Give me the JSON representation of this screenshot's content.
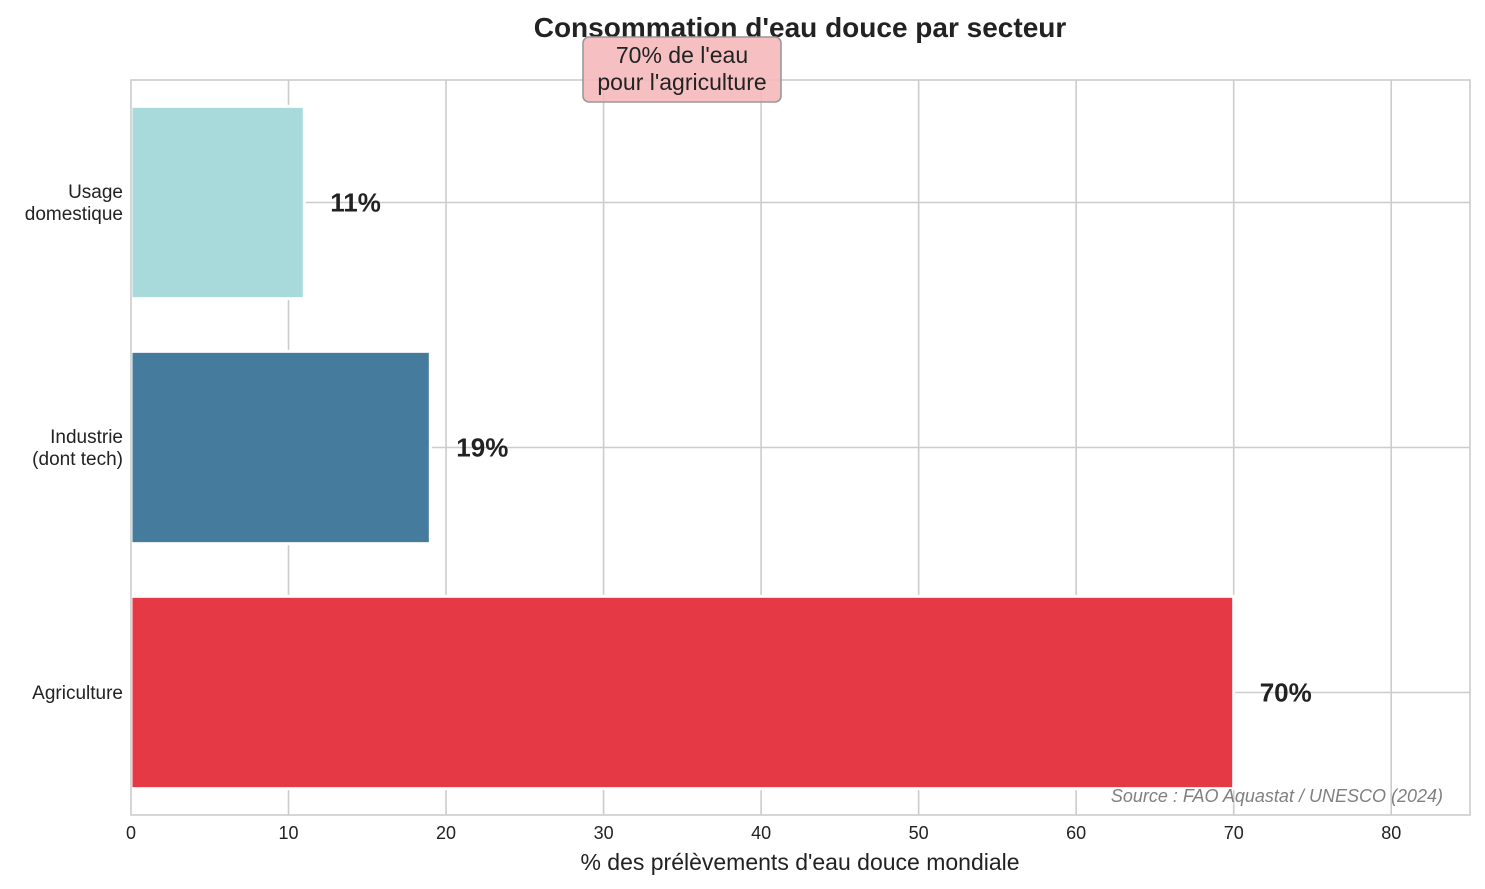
{
  "chart_data": {
    "type": "bar",
    "orientation": "horizontal",
    "title": "Consommation d'eau douce par secteur",
    "xlabel": "% des prélèvements d'eau douce mondiale",
    "ylabel": "",
    "xlim": [
      0,
      85
    ],
    "xticks": [
      "0",
      "10",
      "20",
      "30",
      "40",
      "50",
      "60",
      "70",
      "80"
    ],
    "grid": true,
    "categories": [
      [
        "Usage",
        "domestique"
      ],
      [
        "Industrie",
        "(dont tech)"
      ],
      [
        "Agriculture"
      ]
    ],
    "values": [
      11,
      19,
      70
    ],
    "data_labels": [
      "11%",
      "19%",
      "70%"
    ],
    "colors": [
      "#a8dadc",
      "#457b9d",
      "#e63946"
    ],
    "annotation": {
      "lines": [
        "70% de l'eau",
        "pour l'agriculture"
      ],
      "box_color": "#f5b7bb"
    },
    "source": "Source : FAO Aquastat / UNESCO (2024)"
  }
}
